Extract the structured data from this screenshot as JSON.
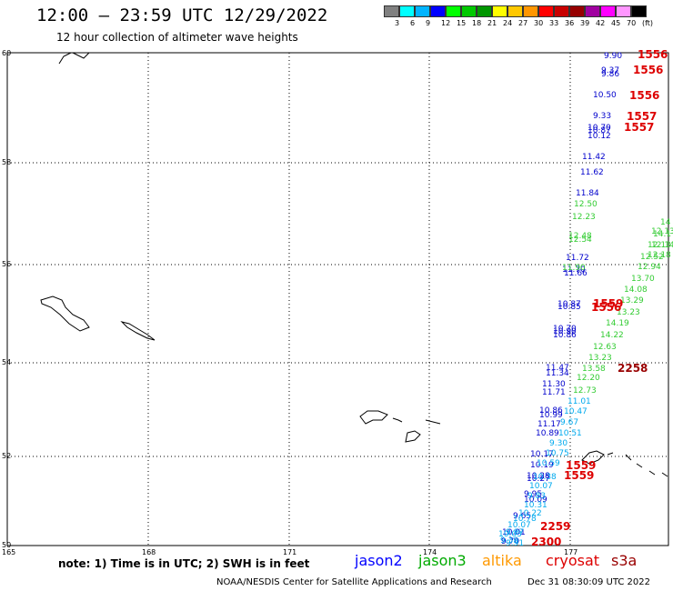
{
  "title": "12:00 – 23:59 UTC 12/29/2022",
  "subtitle": "12 hour collection of altimeter wave heights",
  "colorbar": {
    "colors": [
      "#808080",
      "#00ffff",
      "#00b4ff",
      "#0000ff",
      "#00ff00",
      "#00c800",
      "#009600",
      "#ffff00",
      "#ffc800",
      "#ff9600",
      "#ff0000",
      "#c80000",
      "#960000",
      "#a000a0",
      "#ff00ff",
      "#ff96ff",
      "#000000"
    ],
    "labels": [
      "3",
      "6",
      "9",
      "12",
      "15",
      "18",
      "21",
      "24",
      "27",
      "30",
      "33",
      "36",
      "39",
      "42",
      "45",
      "70",
      "(ft)"
    ]
  },
  "axes": {
    "lat_labels": [
      "60",
      "58",
      "56",
      "54",
      "52",
      "50"
    ],
    "lon_labels": [
      "165",
      "168",
      "171",
      "174",
      "177"
    ]
  },
  "tracks": [
    {
      "sat": "jason2",
      "color": "#0000cc",
      "values": [
        "9.90",
        "9.37",
        "9.86",
        "10.50",
        "9.33",
        "10.70",
        "10.87",
        "10.12",
        "11.42",
        "11.62",
        "11.84",
        "11.72",
        "11.70",
        "11.66",
        "10.87",
        "10.85",
        "10.70",
        "10.90",
        "10.86",
        "11.47",
        "11.34",
        "11.30",
        "11.71",
        "10.86",
        "10.99",
        "11.17",
        "10.89",
        "10.17",
        "10.19",
        "10.28",
        "10.27",
        "9.95",
        "10.09",
        "9.65",
        "10.01",
        "9.70"
      ]
    },
    {
      "sat": "jason3",
      "color": "#33cc33",
      "values": [
        "12.50",
        "12.23",
        "12.48",
        "12.54",
        "11.90",
        "12.14",
        "12.18",
        "12.13",
        "12.52",
        "12.94",
        "13.70",
        "14.08",
        "13.29",
        "13.23",
        "14.19",
        "14.22",
        "12.63",
        "13.23",
        "13.58",
        "12.20",
        "12.73"
      ]
    },
    {
      "sat": "altika",
      "color": "#00aaee",
      "values": [
        "11.01",
        "10.47",
        "9.67",
        "10.51",
        "9.30",
        "10.75",
        "10.59",
        "10.38",
        "10.07",
        "9.83",
        "10.31",
        "10.22",
        "10.78",
        "10.07",
        "9.87",
        "9.39",
        "10.03",
        "9.91"
      ]
    },
    {
      "sat": "cryosat",
      "color": "#dd0000",
      "values": [
        "1556",
        "1556",
        "1556",
        "1557",
        "1557",
        "1559",
        "1556",
        "1559",
        "1559",
        "2259",
        "2300"
      ]
    },
    {
      "sat": "s3a",
      "color": "#990000",
      "values": [
        "2258"
      ]
    }
  ],
  "partial_labels": [
    "14",
    "14.1",
    "12.13"
  ],
  "note": "note: 1) Time is in UTC; 2) SWH is in feet",
  "legend": [
    {
      "label": "jason2",
      "color": "#0000ff"
    },
    {
      "label": "jason3",
      "color": "#00aa00"
    },
    {
      "label": "altika",
      "color": "#ff9900"
    },
    {
      "label": "cryosat",
      "color": "#dd0000"
    },
    {
      "label": "s3a",
      "color": "#990000"
    }
  ],
  "footer_left": "NOAA/NESDIS Center for Satellite Applications and Research",
  "footer_right": "Dec 31 08:30:09 UTC 2022"
}
